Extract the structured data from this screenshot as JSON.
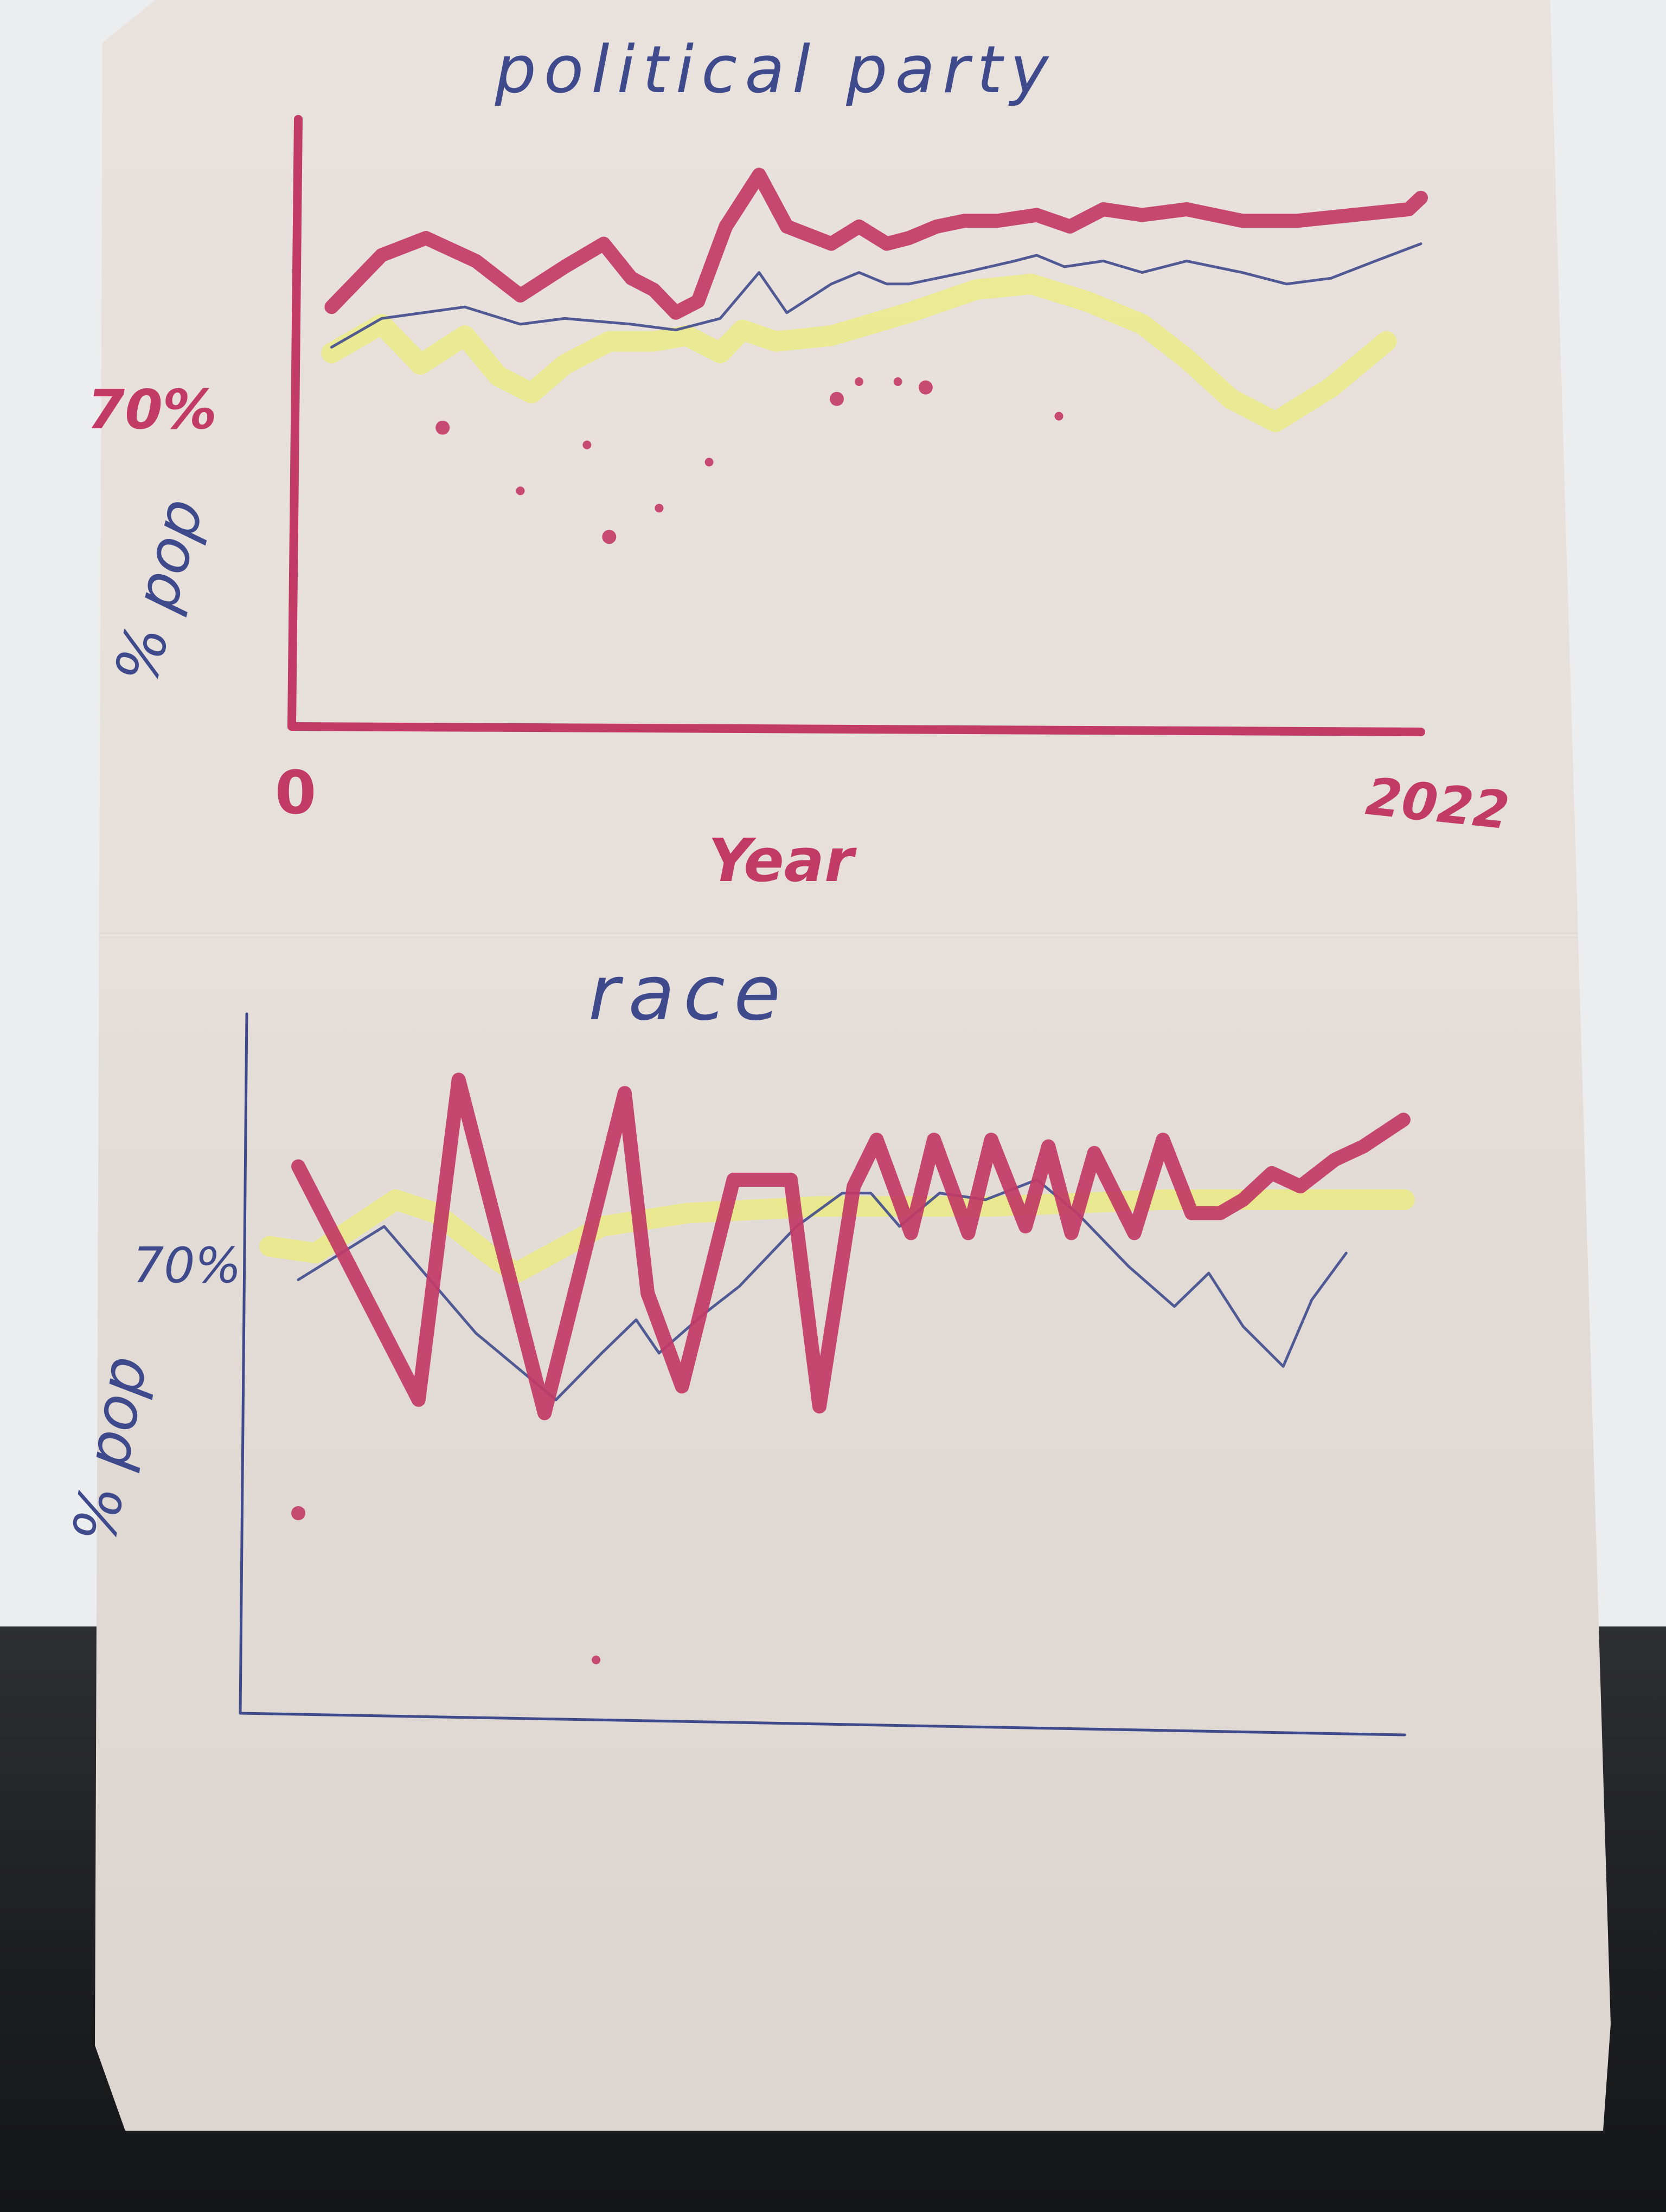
{
  "colors": {
    "marker_red": "#c23a66",
    "pen_blue": "#3f4a8c",
    "highlighter_yellow": "#eef35a",
    "paper": "#e6dfda"
  },
  "chart_data": [
    {
      "type": "line",
      "title": "political party",
      "xlabel": "Year",
      "ylabel": "% pop",
      "x_tick_labels": [
        "0",
        "2022"
      ],
      "y_tick_label": "70%",
      "xlim": [
        0,
        2022
      ],
      "ylim": [
        0,
        100
      ],
      "series": [
        {
          "color": "#c23a66",
          "x": [
            60,
            150,
            230,
            320,
            400,
            480,
            550,
            600,
            640,
            680,
            720,
            770,
            830,
            880,
            960,
            1010,
            1060,
            1100,
            1150,
            1200,
            1260,
            1330,
            1390,
            1450,
            1520,
            1600,
            1700,
            1800,
            1900,
            2000,
            2022
          ],
          "y": [
            73,
            82,
            85,
            81,
            75,
            80,
            84,
            78,
            76,
            72,
            74,
            87,
            96,
            87,
            84,
            87,
            84,
            85,
            87,
            88,
            88,
            89,
            87,
            90,
            89,
            90,
            88,
            88,
            89,
            90,
            92
          ]
        },
        {
          "color": "#3f4a8c",
          "x": [
            60,
            150,
            300,
            400,
            480,
            600,
            680,
            760,
            830,
            880,
            960,
            1010,
            1060,
            1100,
            1200,
            1290,
            1330,
            1380,
            1450,
            1520,
            1600,
            1700,
            1780,
            1860,
            1940,
            2022
          ],
          "y": [
            66,
            71,
            73,
            70,
            71,
            70,
            69,
            71,
            79,
            72,
            77,
            79,
            77,
            77,
            79,
            81,
            82,
            80,
            81,
            79,
            81,
            79,
            77,
            78,
            81,
            84
          ]
        },
        {
          "color": "#eef35a",
          "x": [
            60,
            150,
            220,
            300,
            360,
            420,
            480,
            560,
            640,
            700,
            760,
            800,
            860,
            960,
            1100,
            1220,
            1320,
            1420,
            1520,
            1600,
            1680,
            1760,
            1860,
            1960
          ],
          "y": [
            65,
            70,
            63,
            68,
            61,
            58,
            63,
            67,
            67,
            68,
            65,
            69,
            67,
            68,
            72,
            76,
            77,
            74,
            70,
            64,
            57,
            53,
            59,
            67
          ]
        },
        {
          "color": "#c23a66",
          "mode": "markers",
          "x": [
            260,
            400,
            520,
            560,
            650,
            740,
            970,
            1010,
            1080,
            1130,
            1370
          ],
          "y": [
            52,
            41,
            49,
            33,
            38,
            46,
            57,
            60,
            60,
            59,
            54
          ]
        }
      ]
    },
    {
      "type": "line",
      "title": "race",
      "xlabel": "",
      "ylabel": "% pop",
      "x_tick_labels": [],
      "y_tick_label": "70%",
      "xlim": [
        0,
        2022
      ],
      "ylim": [
        0,
        100
      ],
      "series": [
        {
          "color": "#c23a66",
          "x": [
            90,
            300,
            370,
            520,
            660,
            700,
            760,
            850,
            950,
            1000,
            1060,
            1100,
            1160,
            1200,
            1260,
            1300,
            1360,
            1400,
            1440,
            1480,
            1550,
            1600,
            1650,
            1700,
            1740,
            1790,
            1840,
            1900,
            1950,
            2020
          ],
          "y": [
            82,
            47,
            95,
            45,
            93,
            63,
            49,
            80,
            80,
            46,
            79,
            86,
            72,
            86,
            72,
            86,
            73,
            85,
            72,
            84,
            72,
            86,
            75,
            75,
            77,
            81,
            79,
            83,
            85,
            89
          ]
        },
        {
          "color": "#3f4a8c",
          "x": [
            90,
            240,
            400,
            540,
            620,
            680,
            720,
            800,
            860,
            960,
            1040,
            1090,
            1140,
            1210,
            1290,
            1380,
            1450,
            1540,
            1620,
            1680,
            1740,
            1810,
            1860,
            1920
          ],
          "y": [
            65,
            73,
            57,
            47,
            54,
            59,
            54,
            60,
            64,
            73,
            78,
            78,
            73,
            78,
            77,
            80,
            75,
            67,
            61,
            66,
            58,
            52,
            62,
            69
          ]
        },
        {
          "color": "#eef35a",
          "x": [
            40,
            120,
            260,
            330,
            420,
            470,
            620,
            770,
            1000,
            1300,
            1600,
            1900,
            2022
          ],
          "y": [
            70,
            69,
            77,
            75,
            69,
            66,
            73,
            75,
            76,
            76,
            77,
            77,
            77
          ]
        },
        {
          "color": "#c23a66",
          "mode": "markers",
          "x": [
            90,
            610
          ],
          "y": [
            30,
            8
          ]
        }
      ]
    }
  ]
}
